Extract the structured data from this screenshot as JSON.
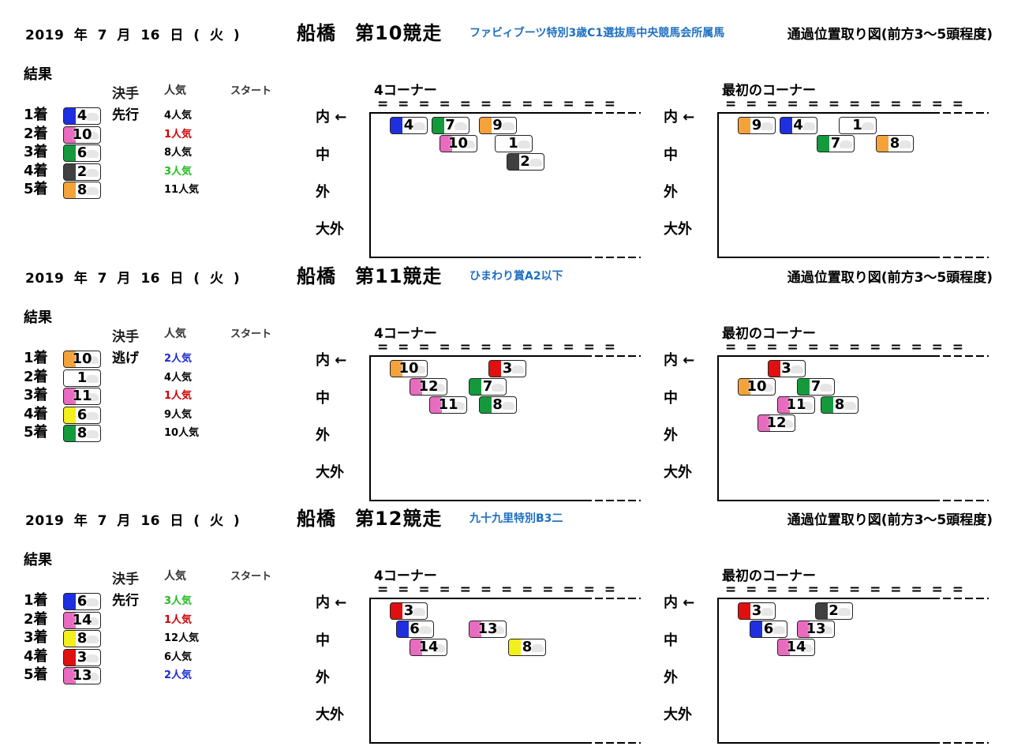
{
  "races": [
    {
      "date": "2019 年 7 月 16 日 ( 火 )",
      "track": "船橋",
      "race_no": "第10競走",
      "race_name": "ファビィブーツ特別3歳C1選抜馬中央競馬会所属馬",
      "diagram_title": "通過位置取り図(前方3～5頭程度)",
      "result_label": "結果",
      "col_kimete": "決手",
      "col_ninki": "人気",
      "col_start": "スタート",
      "corner4_label": "4コーナー",
      "first_corner_label": "最初のコーナー",
      "equals": "= = = = = = = = = = = =",
      "lanes": [
        "内 ←",
        "中",
        "外",
        "大外"
      ],
      "results": [
        {
          "rank": "1着",
          "num": "4",
          "color": "#1f2fe0",
          "kimete": "先行",
          "pop": "4人気",
          "pop_color": "#000000"
        },
        {
          "rank": "2着",
          "num": "10",
          "color": "#e86bbf",
          "kimete": "",
          "pop": "1人気",
          "pop_color": "#cc0000"
        },
        {
          "rank": "3着",
          "num": "6",
          "color": "#149a3c",
          "kimete": "",
          "pop": "8人気",
          "pop_color": "#000000"
        },
        {
          "rank": "4着",
          "num": "2",
          "color": "#404040",
          "kimete": "",
          "pop": "3人気",
          "pop_color": "#22bb22"
        },
        {
          "rank": "5着",
          "num": "8",
          "color": "#f4a23a",
          "kimete": "",
          "pop": "11人気",
          "pop_color": "#000000"
        }
      ],
      "corner4": [
        {
          "num": "4",
          "color": "#1f2fe0",
          "col": 0,
          "row": 0
        },
        {
          "num": "7",
          "color": "#149a3c",
          "col": 1.05,
          "row": 0
        },
        {
          "num": "9",
          "color": "#f4a23a",
          "col": 2.25,
          "row": 0
        },
        {
          "num": "10",
          "color": "#e86bbf",
          "col": 1.25,
          "row": 1
        },
        {
          "num": "1",
          "color": "#ffffff",
          "col": 2.65,
          "row": 1
        },
        {
          "num": "2",
          "color": "#404040",
          "col": 2.95,
          "row": 2
        }
      ],
      "first_corner": [
        {
          "num": "9",
          "color": "#f4a23a",
          "col": 0,
          "row": 0
        },
        {
          "num": "4",
          "color": "#1f2fe0",
          "col": 1.05,
          "row": 0
        },
        {
          "num": "1",
          "color": "#ffffff",
          "col": 2.55,
          "row": 0
        },
        {
          "num": "7",
          "color": "#149a3c",
          "col": 2.0,
          "row": 1
        },
        {
          "num": "8",
          "color": "#f4a23a",
          "col": 3.5,
          "row": 1
        }
      ]
    },
    {
      "date": "2019 年 7 月 16 日 ( 火 )",
      "track": "船橋",
      "race_no": "第11競走",
      "race_name": "ひまわり賞A2以下",
      "diagram_title": "通過位置取り図(前方3～5頭程度)",
      "result_label": "結果",
      "col_kimete": "決手",
      "col_ninki": "人気",
      "col_start": "スタート",
      "corner4_label": "4コーナー",
      "first_corner_label": "最初のコーナー",
      "equals": "= = = = = = = = = = = =",
      "lanes": [
        "内 ←",
        "中",
        "外",
        "大外"
      ],
      "results": [
        {
          "rank": "1着",
          "num": "10",
          "color": "#f4a23a",
          "kimete": "逃げ",
          "pop": "2人気",
          "pop_color": "#1a2bd0"
        },
        {
          "rank": "2着",
          "num": "1",
          "color": "#ffffff",
          "kimete": "",
          "pop": "4人気",
          "pop_color": "#000000"
        },
        {
          "rank": "3着",
          "num": "11",
          "color": "#e86bbf",
          "kimete": "",
          "pop": "1人気",
          "pop_color": "#cc0000"
        },
        {
          "rank": "4着",
          "num": "6",
          "color": "#f2ef1c",
          "kimete": "",
          "pop": "9人気",
          "pop_color": "#000000"
        },
        {
          "rank": "5着",
          "num": "8",
          "color": "#149a3c",
          "kimete": "",
          "pop": "10人気",
          "pop_color": "#000000"
        }
      ],
      "corner4": [
        {
          "num": "10",
          "color": "#f4a23a",
          "col": 0,
          "row": 0
        },
        {
          "num": "3",
          "color": "#e01010",
          "col": 2.5,
          "row": 0
        },
        {
          "num": "12",
          "color": "#e86bbf",
          "col": 0.5,
          "row": 1
        },
        {
          "num": "7",
          "color": "#149a3c",
          "col": 2.0,
          "row": 1
        },
        {
          "num": "11",
          "color": "#e86bbf",
          "col": 1.0,
          "row": 2
        },
        {
          "num": "8",
          "color": "#149a3c",
          "col": 2.25,
          "row": 2
        }
      ],
      "first_corner": [
        {
          "num": "3",
          "color": "#e01010",
          "col": 0.75,
          "row": 0
        },
        {
          "num": "10",
          "color": "#f4a23a",
          "col": 0,
          "row": 1
        },
        {
          "num": "7",
          "color": "#149a3c",
          "col": 1.5,
          "row": 1
        },
        {
          "num": "11",
          "color": "#e86bbf",
          "col": 1.0,
          "row": 2
        },
        {
          "num": "8",
          "color": "#149a3c",
          "col": 2.1,
          "row": 2
        },
        {
          "num": "12",
          "color": "#e86bbf",
          "col": 0.5,
          "row": 3
        }
      ]
    },
    {
      "date": "2019 年 7 月 16 日 ( 火 )",
      "track": "船橋",
      "race_no": "第12競走",
      "race_name": "九十九里特別B3二",
      "diagram_title": "通過位置取り図(前方3～5頭程度)",
      "result_label": "結果",
      "col_kimete": "決手",
      "col_ninki": "人気",
      "col_start": "スタート",
      "corner4_label": "4コーナー",
      "first_corner_label": "最初のコーナー",
      "equals": "= = = = = = = = = = = =",
      "lanes": [
        "内 ←",
        "中",
        "外",
        "大外"
      ],
      "results": [
        {
          "rank": "1着",
          "num": "6",
          "color": "#1f2fe0",
          "kimete": "先行",
          "pop": "3人気",
          "pop_color": "#22bb22"
        },
        {
          "rank": "2着",
          "num": "14",
          "color": "#e86bbf",
          "kimete": "",
          "pop": "1人気",
          "pop_color": "#cc0000"
        },
        {
          "rank": "3着",
          "num": "8",
          "color": "#f2ef1c",
          "kimete": "",
          "pop": "12人気",
          "pop_color": "#000000"
        },
        {
          "rank": "4着",
          "num": "3",
          "color": "#e01010",
          "kimete": "",
          "pop": "6人気",
          "pop_color": "#000000"
        },
        {
          "rank": "5着",
          "num": "13",
          "color": "#e86bbf",
          "kimete": "",
          "pop": "2人気",
          "pop_color": "#1a2bd0"
        }
      ],
      "corner4": [
        {
          "num": "3",
          "color": "#e01010",
          "col": 0,
          "row": 0
        },
        {
          "num": "6",
          "color": "#1f2fe0",
          "col": 0.15,
          "row": 1
        },
        {
          "num": "13",
          "color": "#e86bbf",
          "col": 2.0,
          "row": 1
        },
        {
          "num": "14",
          "color": "#e86bbf",
          "col": 0.5,
          "row": 2
        },
        {
          "num": "8",
          "color": "#f2ef1c",
          "col": 3.0,
          "row": 2
        }
      ],
      "first_corner": [
        {
          "num": "3",
          "color": "#e01010",
          "col": 0,
          "row": 0
        },
        {
          "num": "2",
          "color": "#404040",
          "col": 1.95,
          "row": 0
        },
        {
          "num": "6",
          "color": "#1f2fe0",
          "col": 0.3,
          "row": 1
        },
        {
          "num": "13",
          "color": "#e86bbf",
          "col": 1.5,
          "row": 1
        },
        {
          "num": "14",
          "color": "#e86bbf",
          "col": 1.0,
          "row": 2
        }
      ]
    }
  ]
}
